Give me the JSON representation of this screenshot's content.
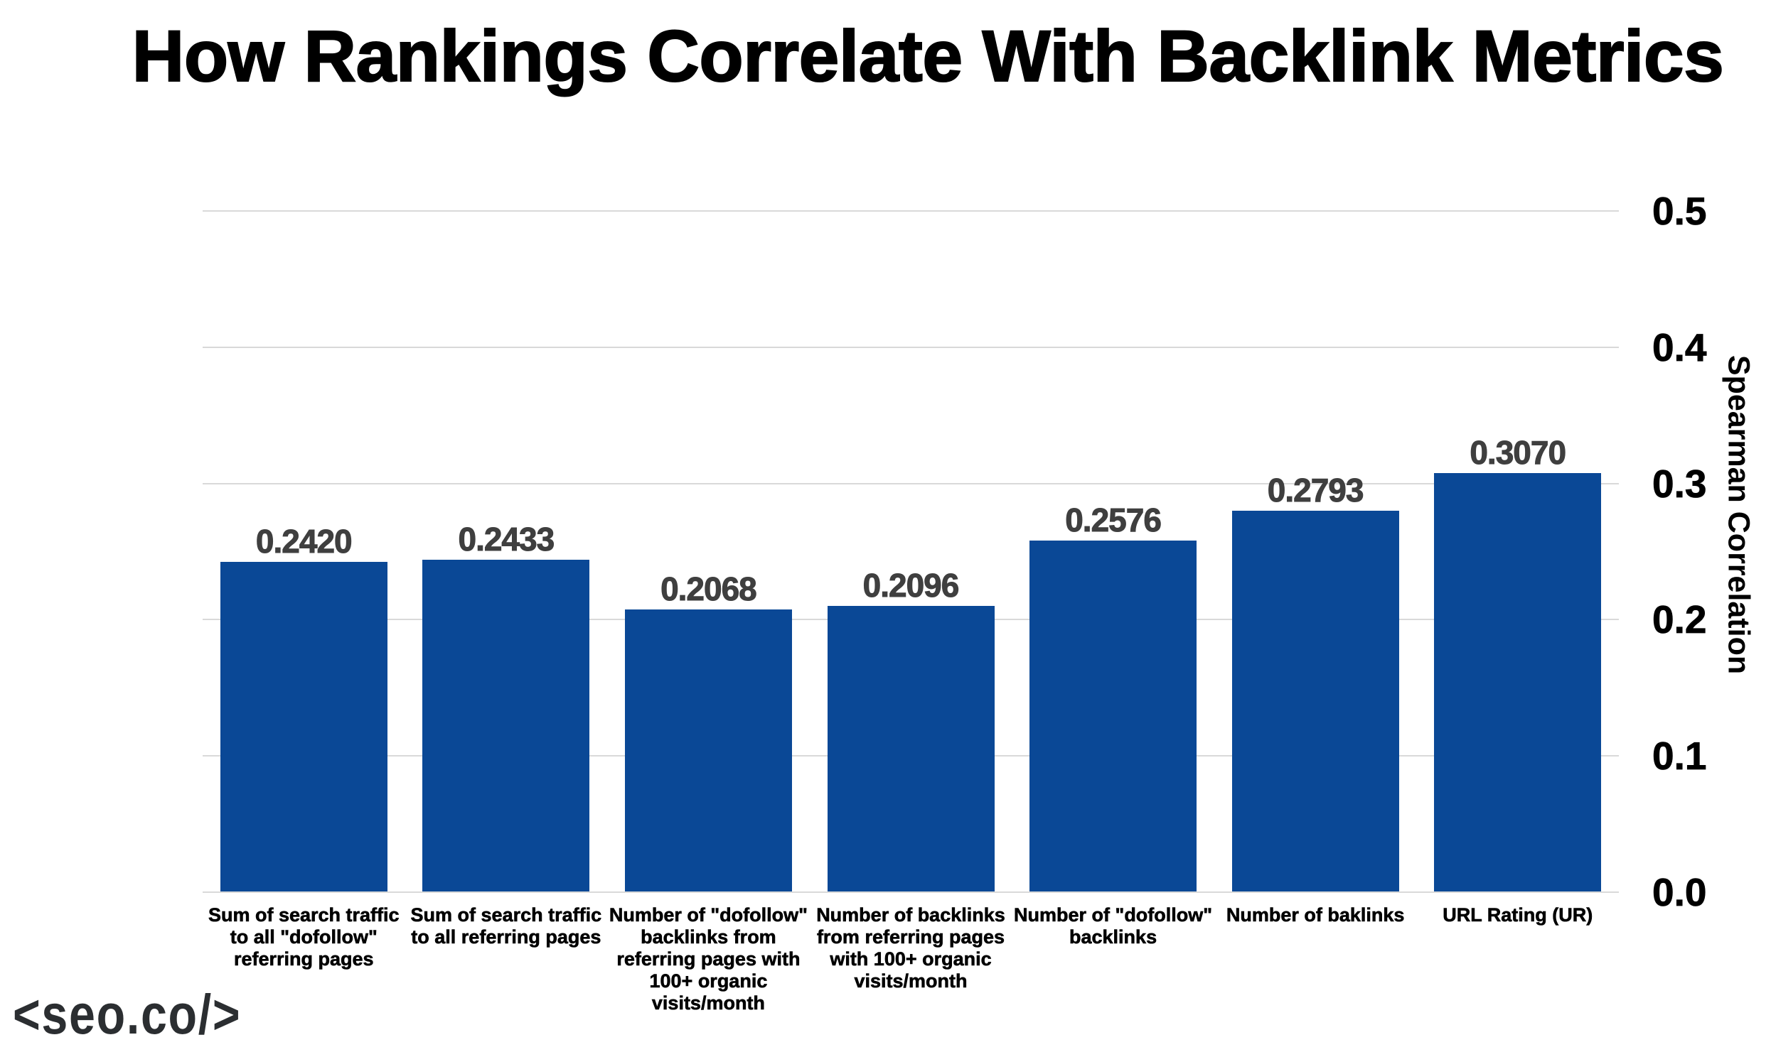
{
  "title": "How Rankings Correlate With Backlink Metrics",
  "logo": "<seo.co/>",
  "chart_data": {
    "type": "bar",
    "title": "How Rankings Correlate With Backlink Metrics",
    "categories": [
      "Sum of search traffic\nto all \"dofollow\"\nreferring pages",
      "Sum of search traffic\nto all referring pages",
      "Number of \"dofollow\"\nbacklinks from\nreferring pages with\n100+ organic\nvisits/month",
      "Number of backlinks\nfrom referring pages\nwith 100+ organic\nvisits/month",
      "Number of \"dofollow\"\nbacklinks",
      "Number of baklinks",
      "URL Rating (UR)"
    ],
    "values": [
      0.242,
      0.2433,
      0.2068,
      0.2096,
      0.2576,
      0.2793,
      0.307
    ],
    "value_labels": [
      "0.2420",
      "0.2433",
      "0.2068",
      "0.2096",
      "0.2576",
      "0.2793",
      "0.3070"
    ],
    "ylabel": "Spearman Correlation",
    "xlabel": "",
    "ylim": [
      0,
      0.5
    ],
    "y_ticks": [
      "0.0",
      "0.1",
      "0.2",
      "0.3",
      "0.4",
      "0.5"
    ],
    "grid": "horizontal",
    "legend": "none",
    "colors": {
      "bar": "#0a4896",
      "grid": "#d9d9d9",
      "value_label": "#3f3f3f",
      "axis_text": "#000000"
    }
  }
}
